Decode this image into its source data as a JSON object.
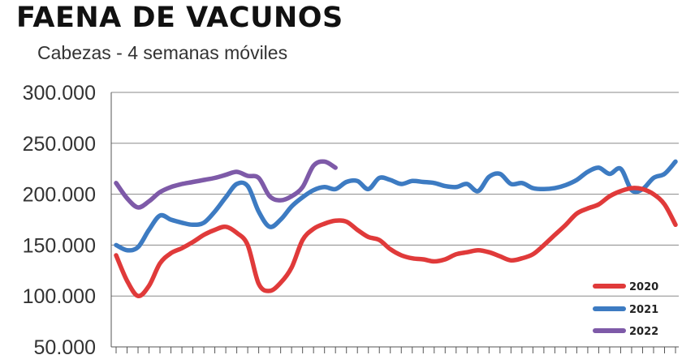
{
  "title": "FAENA DE VACUNOS",
  "subtitle": "Cabezas - 4 semanas móviles",
  "chart_data": {
    "type": "line",
    "title": "FAENA DE VACUNOS",
    "subtitle": "Cabezas - 4 semanas móviles",
    "xlabel": "",
    "ylabel": "",
    "ylim": [
      50000,
      300000
    ],
    "xlim": [
      1,
      52
    ],
    "yticks": [
      50000,
      100000,
      150000,
      200000,
      250000,
      300000
    ],
    "ytick_labels": [
      "50.000",
      "100.000",
      "150.000",
      "200.000",
      "250.000",
      "300.000"
    ],
    "grid": "horizontal",
    "legend_position": "bottom-right",
    "series": [
      {
        "name": "2020",
        "color": "#e03a3a",
        "x": [
          1,
          2,
          3,
          4,
          5,
          6,
          7,
          8,
          9,
          10,
          11,
          12,
          13,
          14,
          15,
          16,
          17,
          18,
          19,
          20,
          21,
          22,
          23,
          24,
          25,
          26,
          27,
          28,
          29,
          30,
          31,
          32,
          33,
          34,
          35,
          36,
          37,
          38,
          39,
          40,
          41,
          42,
          43,
          44,
          45,
          46,
          47,
          48,
          49,
          50,
          51,
          52
        ],
        "values": [
          140000,
          115000,
          100000,
          110000,
          132000,
          142000,
          147000,
          153000,
          160000,
          165000,
          168000,
          162000,
          150000,
          112000,
          105000,
          113000,
          128000,
          155000,
          166000,
          171000,
          174000,
          173000,
          165000,
          158000,
          155000,
          146000,
          140000,
          137000,
          136000,
          134000,
          136000,
          141000,
          143000,
          145000,
          143000,
          139000,
          135000,
          137000,
          141000,
          150000,
          160000,
          170000,
          181000,
          186000,
          190000,
          198000,
          203000,
          206000,
          205000,
          200000,
          190000,
          170000
        ]
      },
      {
        "name": "2021",
        "color": "#3d7bc2",
        "x": [
          1,
          2,
          3,
          4,
          5,
          6,
          7,
          8,
          9,
          10,
          11,
          12,
          13,
          14,
          15,
          16,
          17,
          18,
          19,
          20,
          21,
          22,
          23,
          24,
          25,
          26,
          27,
          28,
          29,
          30,
          31,
          32,
          33,
          34,
          35,
          36,
          37,
          38,
          39,
          40,
          41,
          42,
          43,
          44,
          45,
          46,
          47,
          48,
          49,
          50,
          51,
          52
        ],
        "values": [
          150000,
          145000,
          148000,
          165000,
          179000,
          175000,
          172000,
          170000,
          172000,
          183000,
          197000,
          210000,
          208000,
          183000,
          168000,
          175000,
          188000,
          197000,
          204000,
          207000,
          205000,
          212000,
          213000,
          205000,
          216000,
          214000,
          210000,
          213000,
          212000,
          211000,
          208000,
          207000,
          210000,
          203000,
          217000,
          220000,
          210000,
          211000,
          206000,
          205000,
          206000,
          209000,
          214000,
          222000,
          226000,
          220000,
          225000,
          204000,
          205000,
          216000,
          220000,
          232000
        ]
      },
      {
        "name": "2022",
        "color": "#7e5aa8",
        "x": [
          1,
          2,
          3,
          4,
          5,
          6,
          7,
          8,
          9,
          10,
          11,
          12,
          13,
          14,
          15,
          16,
          17,
          18,
          19,
          20,
          21
        ],
        "values": [
          211000,
          196000,
          187000,
          193000,
          202000,
          207000,
          210000,
          212000,
          214000,
          216000,
          219000,
          222000,
          218000,
          216000,
          198000,
          194000,
          198000,
          207000,
          228000,
          232000,
          226000
        ]
      }
    ]
  }
}
